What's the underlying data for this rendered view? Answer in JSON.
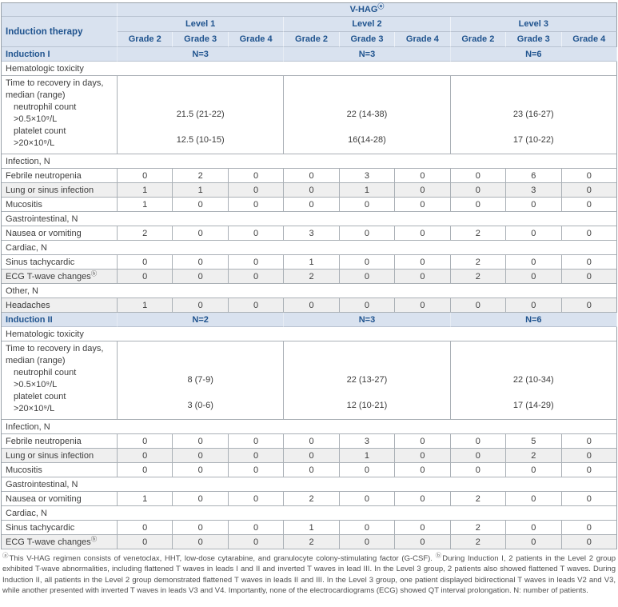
{
  "header": {
    "title": "V-HAG",
    "title_sup": "ⓐ",
    "corner_label": "Induction therapy",
    "levels": [
      "Level 1",
      "Level 2",
      "Level 3"
    ],
    "grades": [
      "Grade 2",
      "Grade 3",
      "Grade 4"
    ]
  },
  "sections": [
    {
      "name": "Induction I",
      "n_values": [
        "N=3",
        "N=3",
        "N=6"
      ],
      "groups": [
        {
          "category": "Hematologic toxicity",
          "recovery": {
            "label_lines": [
              "Time to recovery in days,",
              "median (range)"
            ],
            "items": [
              {
                "label_lines": [
                  "neutrophil count",
                  ">0.5×10⁹/L"
                ],
                "values": [
                  "21.5 (21-22)",
                  "22 (14-38)",
                  "23 (16-27)"
                ]
              },
              {
                "label_lines": [
                  "platelet count",
                  ">20×10⁹/L"
                ],
                "values": [
                  "12.5 (10-15)",
                  "16(14-28)",
                  "17 (10-22)"
                ]
              }
            ]
          }
        },
        {
          "category": "Infection, N",
          "rows": [
            {
              "label": "Febrile neutropenia",
              "values": [
                "0",
                "2",
                "0",
                "0",
                "3",
                "0",
                "0",
                "6",
                "0"
              ]
            },
            {
              "label": "Lung or sinus infection",
              "values": [
                "1",
                "1",
                "0",
                "0",
                "1",
                "0",
                "0",
                "3",
                "0"
              ]
            },
            {
              "label": "Mucositis",
              "values": [
                "1",
                "0",
                "0",
                "0",
                "0",
                "0",
                "0",
                "0",
                "0"
              ]
            }
          ]
        },
        {
          "category": "Gastrointestinal, N",
          "rows": [
            {
              "label": "Nausea or vomiting",
              "values": [
                "2",
                "0",
                "0",
                "3",
                "0",
                "0",
                "2",
                "0",
                "0"
              ]
            }
          ]
        },
        {
          "category": "Cardiac, N",
          "rows": [
            {
              "label": "Sinus tachycardic",
              "values": [
                "0",
                "0",
                "0",
                "1",
                "0",
                "0",
                "2",
                "0",
                "0"
              ]
            },
            {
              "label": "ECG T-wave changes",
              "label_sup": "ⓑ",
              "values": [
                "0",
                "0",
                "0",
                "2",
                "0",
                "0",
                "2",
                "0",
                "0"
              ]
            }
          ]
        },
        {
          "category": "Other, N",
          "rows": [
            {
              "label": "Headaches",
              "values": [
                "1",
                "0",
                "0",
                "0",
                "0",
                "0",
                "0",
                "0",
                "0"
              ]
            }
          ]
        }
      ]
    },
    {
      "name": "Induction II",
      "n_values": [
        "N=2",
        "N=3",
        "N=6"
      ],
      "groups": [
        {
          "category": "Hematologic toxicity",
          "recovery": {
            "label_lines": [
              "Time to recovery in days,",
              "median (range)"
            ],
            "items": [
              {
                "label_lines": [
                  "neutrophil count",
                  ">0.5×10⁹/L"
                ],
                "values": [
                  "8 (7-9)",
                  "22 (13-27)",
                  "22 (10-34)"
                ]
              },
              {
                "label_lines": [
                  "platelet count",
                  ">20×10⁹/L"
                ],
                "values": [
                  "3 (0-6)",
                  "12 (10-21)",
                  "17 (14-29)"
                ]
              }
            ]
          }
        },
        {
          "category": "Infection, N",
          "rows": [
            {
              "label": "Febrile neutropenia",
              "values": [
                "0",
                "0",
                "0",
                "0",
                "3",
                "0",
                "0",
                "5",
                "0"
              ]
            },
            {
              "label": "Lung or sinus infection",
              "values": [
                "0",
                "0",
                "0",
                "0",
                "1",
                "0",
                "0",
                "2",
                "0"
              ]
            },
            {
              "label": "Mucositis",
              "values": [
                "0",
                "0",
                "0",
                "0",
                "0",
                "0",
                "0",
                "0",
                "0"
              ]
            }
          ]
        },
        {
          "category": "Gastrointestinal, N",
          "rows": [
            {
              "label": "Nausea or vomiting",
              "values": [
                "1",
                "0",
                "0",
                "2",
                "0",
                "0",
                "2",
                "0",
                "0"
              ]
            }
          ]
        },
        {
          "category": "Cardiac, N",
          "rows": [
            {
              "label": "Sinus tachycardic",
              "values": [
                "0",
                "0",
                "0",
                "1",
                "0",
                "0",
                "2",
                "0",
                "0"
              ]
            },
            {
              "label": "ECG T-wave changes",
              "label_sup": "ⓑ",
              "values": [
                "0",
                "0",
                "0",
                "2",
                "0",
                "0",
                "2",
                "0",
                "0"
              ]
            }
          ]
        }
      ]
    }
  ],
  "footnote": {
    "sup1": "ⓐ",
    "part1": "This V-HAG regimen consists of venetoclax, HHT, low-dose cytarabine, and granulocyte colony-stimulating factor (G-CSF). ",
    "sup2": "ⓑ",
    "part2": "During Induction I, 2 patients in the Level 2 group exhibited T-wave abnormalities, including flattened T waves in leads I and II and inverted T waves in lead III. In the Level 3 group, 2 patients also showed flattened T waves. During Induction II, all patients in the Level 2 group demonstrated flattened T waves in leads II and III. In the Level 3 group, one patient displayed bidirectional T waves in leads V2 and V3, while another presented with inverted T waves in leads V3 and V4. Importantly, none of the electrocardiograms (ECG) showed QT interval prolongation. N: number of patients."
  },
  "colors": {
    "header_bg": "#d9e2ef",
    "header_text": "#1f538e",
    "zebra_row_bg": "#efefef",
    "grid_line": "#aab0b6"
  }
}
